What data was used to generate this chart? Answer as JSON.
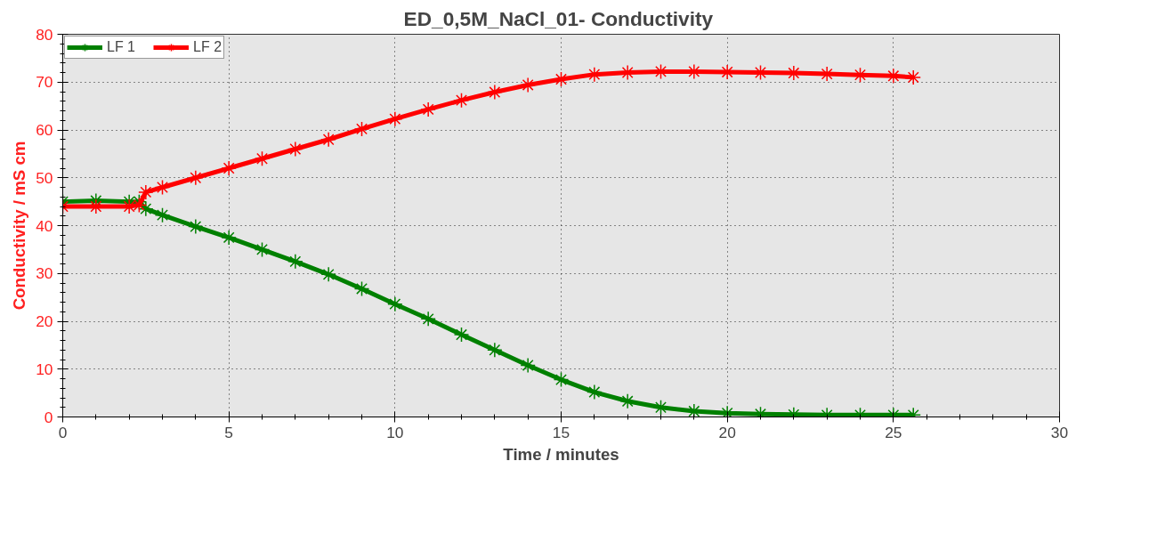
{
  "chart_data": {
    "type": "line",
    "title": "ED_0,5M_NaCl_01-  Conductivity",
    "xlabel": "Time / minutes",
    "ylabel": "Conductivity / mS cm",
    "xlim": [
      0,
      30
    ],
    "xticks": [
      0,
      5,
      10,
      15,
      20,
      25,
      30
    ],
    "ylim": [
      0,
      80
    ],
    "yticks": [
      0,
      10,
      20,
      30,
      40,
      50,
      60,
      70,
      80
    ],
    "grid": true,
    "legend": "top left",
    "marker": "cross",
    "line_style": "solid",
    "x": [
      0,
      1,
      2,
      2.3,
      2.5,
      3,
      4,
      5,
      6,
      7,
      8,
      9,
      10,
      11,
      12,
      13,
      14,
      15,
      16,
      17,
      18,
      19,
      20,
      21,
      22,
      23,
      24,
      25,
      25.6
    ],
    "series": [
      {
        "name": "LF 1",
        "color": "#008000",
        "values": [
          45,
          45.2,
          45,
          45,
          43.5,
          42.2,
          39.8,
          37.5,
          35,
          32.5,
          29.8,
          26.8,
          23.6,
          20.5,
          17.2,
          14,
          10.8,
          7.8,
          5.2,
          3.3,
          2,
          1.2,
          0.8,
          0.6,
          0.5,
          0.4,
          0.4,
          0.4,
          0.4
        ]
      },
      {
        "name": "LF 2",
        "color": "#ff0000",
        "values": [
          44,
          44,
          44,
          44.3,
          47,
          48,
          50,
          52,
          54,
          56,
          58,
          60.2,
          62.3,
          64.3,
          66.2,
          67.9,
          69.4,
          70.6,
          71.6,
          72,
          72.2,
          72.2,
          72.1,
          72,
          71.9,
          71.7,
          71.5,
          71.3,
          71
        ]
      }
    ]
  }
}
